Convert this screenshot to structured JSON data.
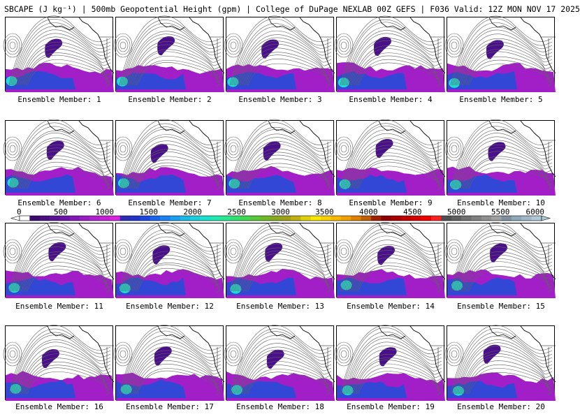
{
  "header": {
    "title": "SBCAPE (J kg⁻¹) | 500mb Geopotential Height (gpm) | College of DuPage NEXLAB 00Z GEFS | F036 Valid: 12Z MON NOV 17 2025"
  },
  "members": [
    {
      "label": "Ensemble Member: 1"
    },
    {
      "label": "Ensemble Member: 2"
    },
    {
      "label": "Ensemble Member: 3"
    },
    {
      "label": "Ensemble Member: 4"
    },
    {
      "label": "Ensemble Member: 5"
    },
    {
      "label": "Ensemble Member: 6"
    },
    {
      "label": "Ensemble Member: 7"
    },
    {
      "label": "Ensemble Member: 8"
    },
    {
      "label": "Ensemble Member: 9"
    },
    {
      "label": "Ensemble Member: 10"
    },
    {
      "label": "Ensemble Member: 11"
    },
    {
      "label": "Ensemble Member: 12"
    },
    {
      "label": "Ensemble Member: 13"
    },
    {
      "label": "Ensemble Member: 14"
    },
    {
      "label": "Ensemble Member: 15"
    },
    {
      "label": "Ensemble Member: 16"
    },
    {
      "label": "Ensemble Member: 17"
    },
    {
      "label": "Ensemble Member: 18"
    },
    {
      "label": "Ensemble Member: 19"
    },
    {
      "label": "Ensemble Member: 20"
    }
  ],
  "colorbar": {
    "tick_labels": [
      "0",
      "500",
      "1000",
      "1500",
      "2000",
      "2500",
      "3000",
      "3500",
      "4000",
      "4500",
      "5000",
      "5500",
      "6000"
    ],
    "colors": [
      "#ffffff",
      "#3d0a6e",
      "#4b0f84",
      "#5b1196",
      "#6d14a8",
      "#8418b8",
      "#9a1dc6",
      "#b21fd0",
      "#c61fd8",
      "#d826e0",
      "#2d2db4",
      "#2233cc",
      "#1a48e0",
      "#1a64ee",
      "#1a82f4",
      "#1aa0f0",
      "#1ab8e8",
      "#1ad0e0",
      "#1ae0d0",
      "#20e8b0",
      "#28e890",
      "#30e070",
      "#40d850",
      "#58c838",
      "#70b828",
      "#88a820",
      "#a0a018",
      "#c0b010",
      "#e0d008",
      "#f8e800",
      "#f8d000",
      "#f8b800",
      "#f0a000",
      "#e08000",
      "#c06000",
      "#a02000",
      "#900000",
      "#a80000",
      "#c00000",
      "#d80000",
      "#ee0000",
      "#ff2020",
      "#505050",
      "#606060",
      "#707070",
      "#808080",
      "#909090",
      "#a0a0a0",
      "#8090a0",
      "#90a8b8",
      "#a0b8c8",
      "#b0c8d8"
    ]
  }
}
